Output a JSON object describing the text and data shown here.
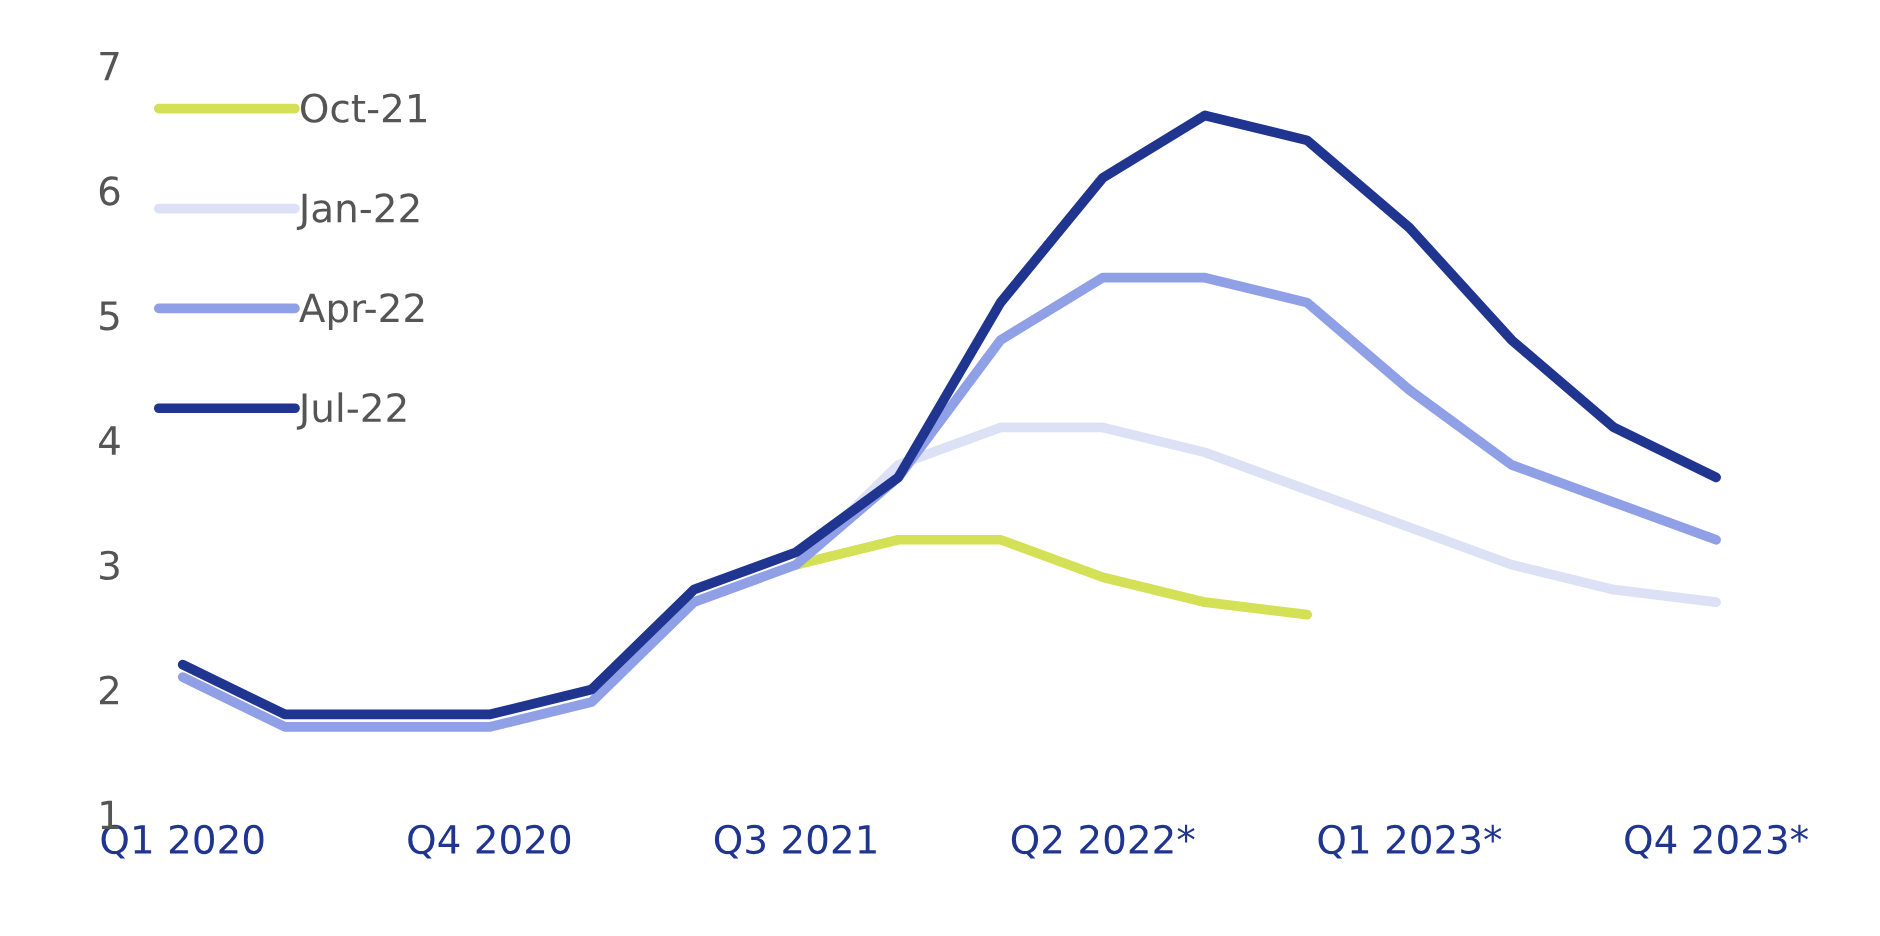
{
  "chart_data": {
    "type": "line",
    "categories": [
      "Q1 2020",
      null,
      null,
      "Q4 2020",
      null,
      null,
      "Q3 2021",
      null,
      null,
      "Q2 2022*",
      null,
      null,
      "Q1 2023*",
      null,
      null,
      "Q4 2023*"
    ],
    "series": [
      {
        "name": "Oct-21",
        "color": "#d4e157",
        "values": [
          null,
          null,
          null,
          null,
          null,
          null,
          3.0,
          3.2,
          3.2,
          2.9,
          2.7,
          2.6,
          null,
          null,
          null,
          null
        ]
      },
      {
        "name": "Jan-22",
        "color": "#dde1f5",
        "values": [
          null,
          null,
          null,
          null,
          null,
          null,
          3.0,
          3.8,
          4.1,
          4.1,
          3.9,
          3.6,
          3.3,
          3.0,
          2.8,
          2.7
        ]
      },
      {
        "name": "Apr-22",
        "color": "#8fa0e6",
        "values": [
          2.1,
          1.7,
          1.7,
          1.7,
          1.9,
          2.7,
          3.0,
          3.7,
          4.8,
          5.3,
          5.3,
          5.1,
          4.4,
          3.8,
          3.5,
          3.2
        ]
      },
      {
        "name": "Jul-22",
        "color": "#1f3590",
        "values": [
          2.2,
          1.8,
          1.8,
          1.8,
          2.0,
          2.8,
          3.1,
          3.7,
          5.1,
          6.1,
          6.6,
          6.4,
          5.7,
          4.8,
          4.1,
          3.7
        ]
      }
    ],
    "ylim": [
      1,
      7
    ],
    "yticks": [
      1,
      2,
      3,
      4,
      5,
      6,
      7
    ],
    "grid": false,
    "legend": "top left",
    "line_style": "solid",
    "marker": "none"
  }
}
